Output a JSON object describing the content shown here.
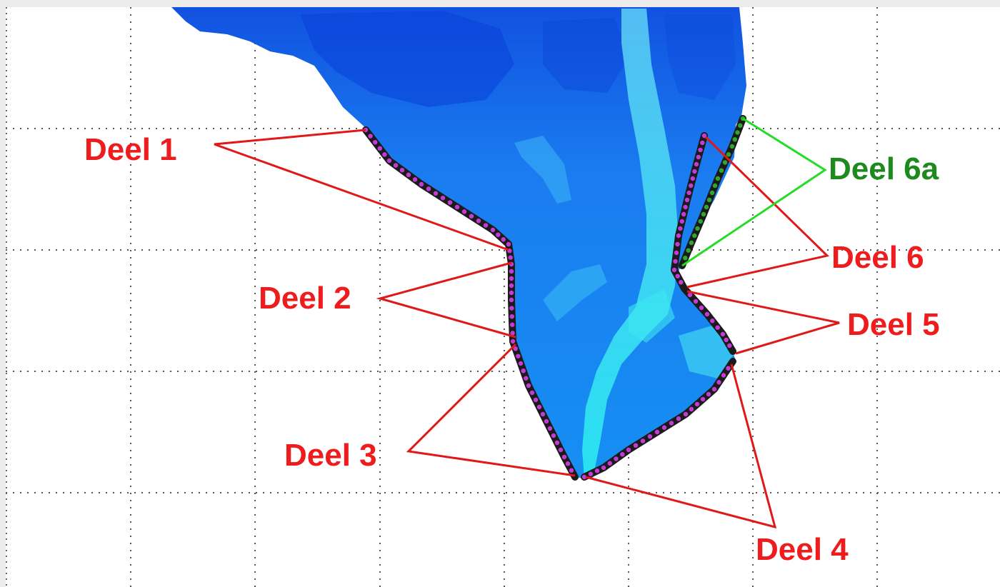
{
  "colors": {
    "frame": "#ececec",
    "plot_background": "#ffffff",
    "grid": "#555555",
    "water_deep": "#0a3fd8",
    "water_mid": "#1e6ef0",
    "water_shallow": "#18a8f5",
    "water_channel": "#2ee0f0",
    "boundary_outline": "#1b1b1b",
    "boundary_dot": "#c43ad6",
    "boundary_dot_green": "#2fa62f",
    "label_red": "#ee1c1c",
    "label_green": "#1c8a1c",
    "leader_red": "#e01818",
    "leader_green": "#22dd22"
  },
  "labels": {
    "deel1": "Deel 1",
    "deel2": "Deel 2",
    "deel3": "Deel 3",
    "deel4": "Deel 4",
    "deel5": "Deel 5",
    "deel6": "Deel 6",
    "deel6a": "Deel 6a"
  }
}
